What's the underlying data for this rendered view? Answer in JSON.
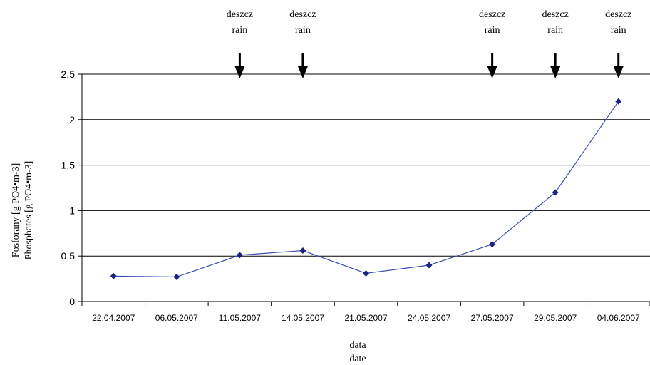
{
  "chart_data": {
    "type": "line",
    "title": "",
    "ylabel": [
      "Fosforany [g PO4•m-3]",
      "Phosphates [g PO4•m-3]"
    ],
    "xlabel": [
      "data",
      "date"
    ],
    "ylim": [
      0,
      2.5
    ],
    "y_ticks": [
      "0",
      "0,5",
      "1",
      "1,5",
      "2",
      "2,5"
    ],
    "categories": [
      "22.04.2007",
      "06.05.2007",
      "11.05.2007",
      "14.05.2007",
      "21.05.2007",
      "24.05.2007",
      "27.05.2007",
      "29.05.2007",
      "04.06.2007"
    ],
    "series": [
      {
        "values": [
          0.28,
          0.27,
          0.51,
          0.56,
          0.31,
          0.4,
          0.63,
          1.2,
          2.2
        ],
        "color": "#1a237e"
      }
    ],
    "grid": true,
    "legend": "none",
    "annotations": [
      {
        "category_index": 2,
        "lines": [
          "deszcz",
          "rain"
        ],
        "marker": "down-arrow"
      },
      {
        "category_index": 3,
        "lines": [
          "deszcz",
          "rain"
        ],
        "marker": "down-arrow"
      },
      {
        "category_index": 6,
        "lines": [
          "deszcz",
          "rain"
        ],
        "marker": "down-arrow"
      },
      {
        "category_index": 7,
        "lines": [
          "deszcz",
          "rain"
        ],
        "marker": "down-arrow"
      },
      {
        "category_index": 8,
        "lines": [
          "deszcz",
          "rain"
        ],
        "marker": "down-arrow"
      }
    ]
  }
}
